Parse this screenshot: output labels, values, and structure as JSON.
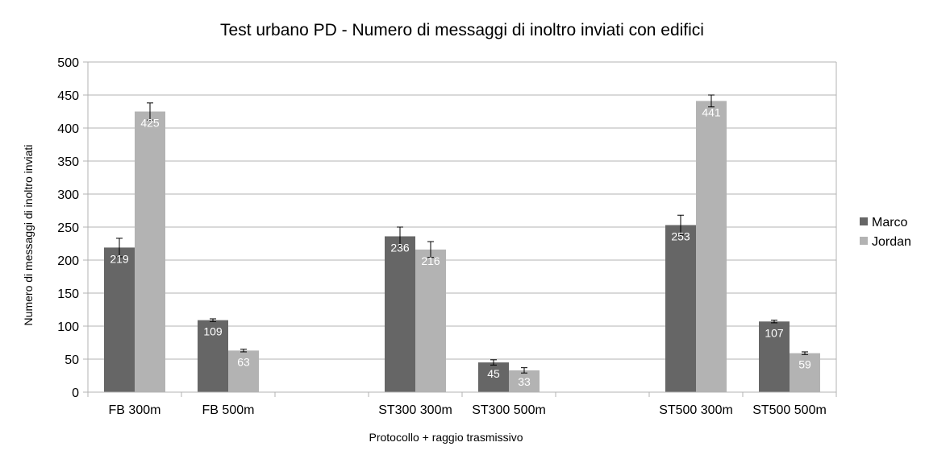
{
  "chart_data": {
    "type": "bar",
    "title": "Test urbano PD - Numero di messaggi di inoltro inviati con edifici",
    "xlabel": "Protocollo + raggio trasmissivo",
    "ylabel": "Numero di messaggi di inoltro inviati",
    "ylim": [
      0,
      500
    ],
    "yticks": [
      0,
      50,
      100,
      150,
      200,
      250,
      300,
      350,
      400,
      450,
      500
    ],
    "grid": true,
    "legend_position": "right",
    "categories": [
      "FB 300m",
      "FB 500m",
      "",
      "ST300 300m",
      "ST300 500m",
      "",
      "ST500 300m",
      "ST500 500m"
    ],
    "series": [
      {
        "name": "Marco",
        "color": "#666666",
        "values": [
          219,
          109,
          null,
          236,
          45,
          null,
          253,
          107
        ],
        "error": [
          14,
          2,
          null,
          14,
          4,
          null,
          15,
          2
        ]
      },
      {
        "name": "Jordan",
        "color": "#b3b3b3",
        "values": [
          425,
          63,
          null,
          216,
          33,
          null,
          441,
          59
        ],
        "error": [
          13,
          2,
          null,
          12,
          4,
          null,
          9,
          2
        ]
      }
    ]
  }
}
